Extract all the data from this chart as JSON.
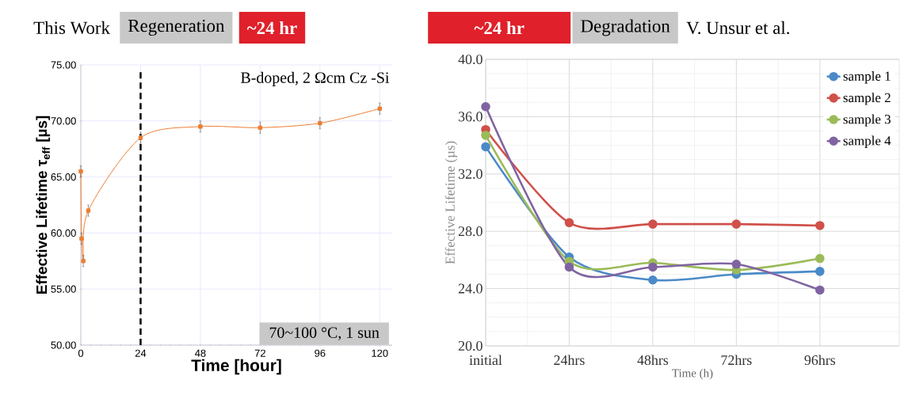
{
  "chart_data": [
    {
      "type": "line",
      "title": "This Work",
      "xlabel": "Time [hour]",
      "ylabel": "Effective Lifetime τ$_{eff}$  [µs]",
      "annotations": [
        "Regeneration",
        "~24 hr",
        "B-doped, 2 Ωcm Cz -Si",
        "70~100 °C, 1 sun"
      ],
      "x": [
        0,
        0.3,
        1,
        3,
        24,
        48,
        72,
        96,
        120
      ],
      "series": [
        {
          "color": "#ed7d31",
          "values": [
            65.5,
            59.5,
            57.5,
            62.0,
            68.5,
            69.5,
            69.4,
            69.8,
            71.1
          ],
          "errors": [
            0.5,
            0.5,
            0.5,
            0.5,
            0.5,
            0.5,
            0.5,
            0.5,
            0.5
          ]
        }
      ],
      "xlim": [
        0,
        125
      ],
      "ylim": [
        50,
        75
      ],
      "xticks": [
        0,
        24,
        48,
        72,
        96,
        120
      ],
      "yticks": [
        {
          "value": 50,
          "label": "50.00"
        },
        {
          "value": 55,
          "label": "55.00"
        },
        {
          "value": 60,
          "label": "60.00"
        },
        {
          "value": 65,
          "label": "65.00"
        },
        {
          "value": 70,
          "label": "70.00"
        },
        {
          "value": 75,
          "label": "75.00"
        }
      ],
      "ref_lines": [
        {
          "axis": "x",
          "value": 24,
          "color": "#000000",
          "line_style": "dashed"
        }
      ],
      "grid": true,
      "marker": "square",
      "line_style": "solid",
      "legend": false
    },
    {
      "type": "line",
      "title": "V. Unsur et al.",
      "xlabel": "Time (h)",
      "ylabel": "Effective Lifetime (µs)",
      "annotations": [
        "~24 hr",
        "Degradation"
      ],
      "categories": [
        "initial",
        "24hrs",
        "48hrs",
        "72hrs",
        "96hrs"
      ],
      "series": [
        {
          "name": "sample 1",
          "color": "#4a8ac8",
          "values": [
            33.9,
            26.2,
            24.6,
            25.0,
            25.2
          ]
        },
        {
          "name": "sample 2",
          "color": "#d0504a",
          "values": [
            35.1,
            28.6,
            28.5,
            28.5,
            28.4
          ]
        },
        {
          "name": "sample 3",
          "color": "#9bbb59",
          "values": [
            34.7,
            25.9,
            25.8,
            25.3,
            26.1
          ]
        },
        {
          "name": "sample 4",
          "color": "#8064a2",
          "values": [
            36.7,
            25.5,
            25.5,
            25.7,
            23.9
          ]
        }
      ],
      "ylim": [
        20,
        40
      ],
      "yticks": [
        {
          "value": 20,
          "label": "20.0"
        },
        {
          "value": 24,
          "label": "24.0"
        },
        {
          "value": 28,
          "label": "28.0"
        },
        {
          "value": 32,
          "label": "32.0"
        },
        {
          "value": 36,
          "label": "36.0"
        },
        {
          "value": 40,
          "label": "40.0"
        }
      ],
      "grid": true,
      "marker": "circle",
      "line_style": "solid",
      "legend": "top right"
    }
  ]
}
